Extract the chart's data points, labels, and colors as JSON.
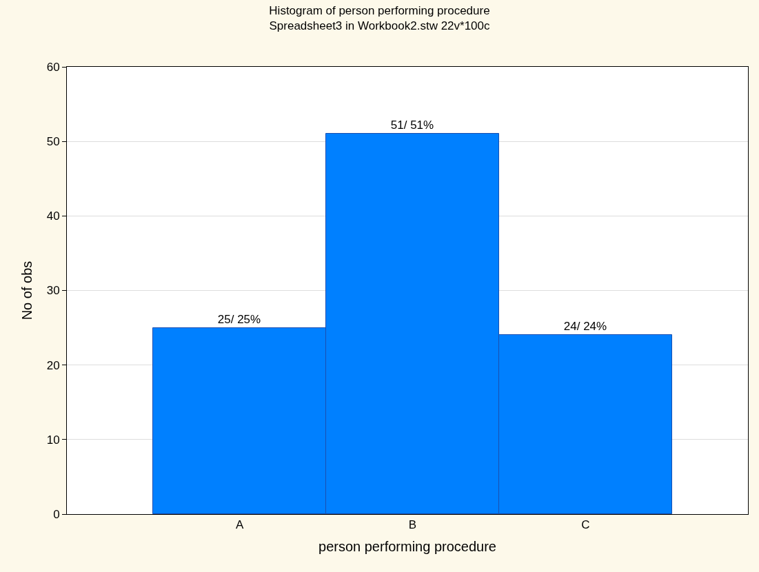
{
  "chart_data": {
    "type": "bar",
    "title": "Histogram of person performing procedure",
    "subtitle": "Spreadsheet3 in Workbook2.stw 22v*100c",
    "xlabel": "person performing procedure",
    "ylabel": "No of obs",
    "categories": [
      "A",
      "B",
      "C"
    ],
    "values": [
      25,
      51,
      24
    ],
    "value_labels": [
      "25/ 25%",
      "51/ 51%",
      "24/ 24%"
    ],
    "color": "#0080ff",
    "ylim": [
      0,
      60
    ],
    "yticks": [
      0,
      10,
      20,
      30,
      40,
      50,
      60
    ],
    "grid": "y",
    "legend": false
  }
}
